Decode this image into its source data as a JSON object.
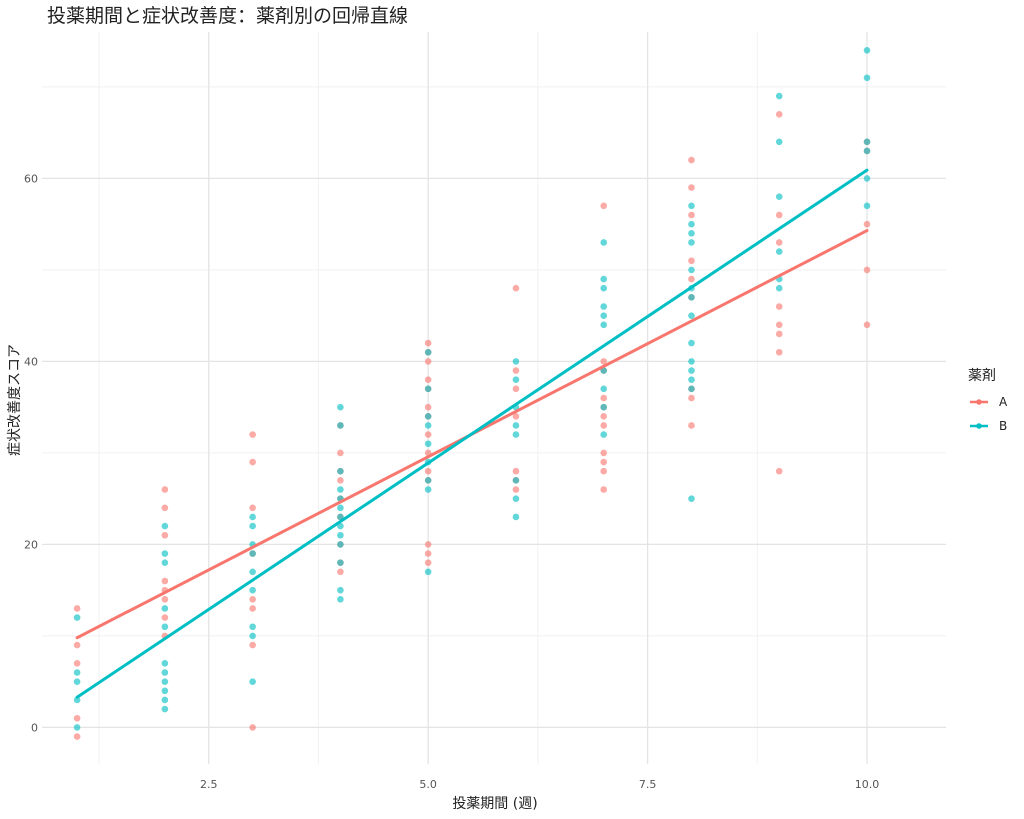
{
  "chart_data": {
    "type": "scatter",
    "title": "投薬期間と症状改善度：薬剤別の回帰直線",
    "xlabel": "投薬期間 (週)",
    "ylabel": "症状改善度スコア",
    "xlim": [
      0.6,
      10.9
    ],
    "ylim": [
      -4,
      76
    ],
    "x_ticks": [
      2.5,
      5.0,
      7.5,
      10.0
    ],
    "x_tick_labels": [
      "2.5",
      "5.0",
      "7.5",
      "10.0"
    ],
    "y_ticks": [
      0,
      20,
      40,
      60
    ],
    "y_tick_labels": [
      "0",
      "20",
      "40",
      "60"
    ],
    "grid": true,
    "legend": {
      "title": "薬剤",
      "position": "right"
    },
    "series": [
      {
        "name": "A",
        "color": "#F8766D",
        "points": [
          [
            1,
            13
          ],
          [
            1,
            9
          ],
          [
            1,
            7
          ],
          [
            1,
            1
          ],
          [
            1,
            -1
          ],
          [
            2,
            26
          ],
          [
            2,
            24
          ],
          [
            2,
            21
          ],
          [
            2,
            16
          ],
          [
            2,
            15
          ],
          [
            2,
            14
          ],
          [
            2,
            12
          ],
          [
            2,
            10
          ],
          [
            3,
            32
          ],
          [
            3,
            29
          ],
          [
            3,
            24
          ],
          [
            3,
            19
          ],
          [
            3,
            14
          ],
          [
            3,
            13
          ],
          [
            3,
            9
          ],
          [
            3,
            0
          ],
          [
            4,
            33
          ],
          [
            4,
            30
          ],
          [
            4,
            28
          ],
          [
            4,
            27
          ],
          [
            4,
            25
          ],
          [
            4,
            23
          ],
          [
            4,
            20
          ],
          [
            4,
            18
          ],
          [
            4,
            17
          ],
          [
            5,
            42
          ],
          [
            5,
            41
          ],
          [
            5,
            40
          ],
          [
            5,
            38
          ],
          [
            5,
            37
          ],
          [
            5,
            35
          ],
          [
            5,
            34
          ],
          [
            5,
            32
          ],
          [
            5,
            30
          ],
          [
            5,
            28
          ],
          [
            5,
            27
          ],
          [
            5,
            20
          ],
          [
            5,
            19
          ],
          [
            5,
            18
          ],
          [
            6,
            48
          ],
          [
            6,
            39
          ],
          [
            6,
            37
          ],
          [
            6,
            34
          ],
          [
            6,
            28
          ],
          [
            6,
            27
          ],
          [
            6,
            26
          ],
          [
            7,
            57
          ],
          [
            7,
            40
          ],
          [
            7,
            39
          ],
          [
            7,
            36
          ],
          [
            7,
            35
          ],
          [
            7,
            34
          ],
          [
            7,
            33
          ],
          [
            7,
            30
          ],
          [
            7,
            29
          ],
          [
            7,
            28
          ],
          [
            7,
            26
          ],
          [
            8,
            62
          ],
          [
            8,
            59
          ],
          [
            8,
            56
          ],
          [
            8,
            51
          ],
          [
            8,
            49
          ],
          [
            8,
            47
          ],
          [
            8,
            37
          ],
          [
            8,
            36
          ],
          [
            8,
            33
          ],
          [
            9,
            67
          ],
          [
            9,
            56
          ],
          [
            9,
            53
          ],
          [
            9,
            46
          ],
          [
            9,
            44
          ],
          [
            9,
            43
          ],
          [
            9,
            41
          ],
          [
            9,
            28
          ],
          [
            10,
            64
          ],
          [
            10,
            63
          ],
          [
            10,
            55
          ],
          [
            10,
            50
          ],
          [
            10,
            44
          ]
        ],
        "regression": {
          "x": [
            1,
            10
          ],
          "y": [
            9.8,
            54.3
          ]
        }
      },
      {
        "name": "B",
        "color": "#00BFC4",
        "points": [
          [
            1,
            12
          ],
          [
            1,
            6
          ],
          [
            1,
            5
          ],
          [
            1,
            3
          ],
          [
            1,
            0
          ],
          [
            2,
            22
          ],
          [
            2,
            19
          ],
          [
            2,
            18
          ],
          [
            2,
            13
          ],
          [
            2,
            11
          ],
          [
            2,
            7
          ],
          [
            2,
            6
          ],
          [
            2,
            5
          ],
          [
            2,
            4
          ],
          [
            2,
            3
          ],
          [
            2,
            2
          ],
          [
            3,
            23
          ],
          [
            3,
            22
          ],
          [
            3,
            20
          ],
          [
            3,
            19
          ],
          [
            3,
            17
          ],
          [
            3,
            15
          ],
          [
            3,
            11
          ],
          [
            3,
            10
          ],
          [
            3,
            5
          ],
          [
            4,
            35
          ],
          [
            4,
            33
          ],
          [
            4,
            28
          ],
          [
            4,
            26
          ],
          [
            4,
            25
          ],
          [
            4,
            24
          ],
          [
            4,
            23
          ],
          [
            4,
            22
          ],
          [
            4,
            21
          ],
          [
            4,
            20
          ],
          [
            4,
            18
          ],
          [
            4,
            15
          ],
          [
            4,
            14
          ],
          [
            5,
            41
          ],
          [
            5,
            37
          ],
          [
            5,
            34
          ],
          [
            5,
            33
          ],
          [
            5,
            31
          ],
          [
            5,
            29
          ],
          [
            5,
            27
          ],
          [
            5,
            26
          ],
          [
            5,
            17
          ],
          [
            6,
            40
          ],
          [
            6,
            38
          ],
          [
            6,
            35
          ],
          [
            6,
            33
          ],
          [
            6,
            32
          ],
          [
            6,
            27
          ],
          [
            6,
            25
          ],
          [
            6,
            23
          ],
          [
            7,
            53
          ],
          [
            7,
            49
          ],
          [
            7,
            48
          ],
          [
            7,
            46
          ],
          [
            7,
            45
          ],
          [
            7,
            44
          ],
          [
            7,
            39
          ],
          [
            7,
            37
          ],
          [
            7,
            35
          ],
          [
            7,
            32
          ],
          [
            8,
            57
          ],
          [
            8,
            55
          ],
          [
            8,
            54
          ],
          [
            8,
            53
          ],
          [
            8,
            50
          ],
          [
            8,
            48
          ],
          [
            8,
            47
          ],
          [
            8,
            45
          ],
          [
            8,
            42
          ],
          [
            8,
            40
          ],
          [
            8,
            39
          ],
          [
            8,
            38
          ],
          [
            8,
            37
          ],
          [
            8,
            25
          ],
          [
            9,
            69
          ],
          [
            9,
            64
          ],
          [
            9,
            58
          ],
          [
            9,
            52
          ],
          [
            9,
            49
          ],
          [
            9,
            48
          ],
          [
            10,
            74
          ],
          [
            10,
            71
          ],
          [
            10,
            64
          ],
          [
            10,
            63
          ],
          [
            10,
            60
          ],
          [
            10,
            57
          ]
        ],
        "regression": {
          "x": [
            1,
            10
          ],
          "y": [
            3.3,
            60.9
          ]
        }
      }
    ]
  }
}
